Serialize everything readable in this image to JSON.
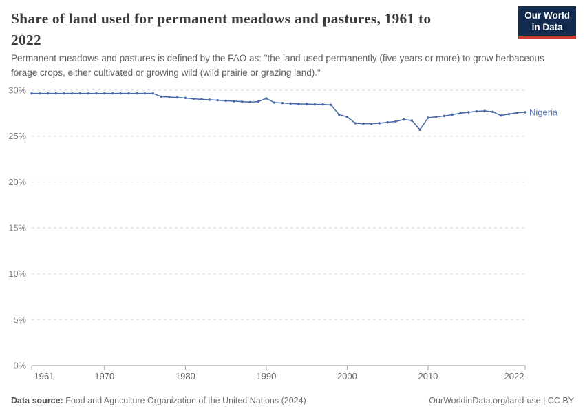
{
  "header": {
    "title": "Share of land used for permanent meadows and pastures, 1961 to 2022",
    "title_lines": [
      "Share of land used for permanent meadows and pastures, 1961 to",
      "2022"
    ],
    "subtitle": "Permanent meadows and pastures is defined by the FAO as: \"the land used permanently (five years or more) to grow herbaceous forage crops, either cultivated or growing wild (wild prairie or grazing land).\"",
    "logo": {
      "line1": "Our World",
      "line2": "in Data",
      "bg": "#122b4e",
      "accent": "#cf3b32"
    }
  },
  "chart_data": {
    "type": "line",
    "title": "Share of land used for permanent meadows and pastures, 1961 to 2022",
    "xlabel": "",
    "ylabel": "",
    "xlim": [
      1961,
      2022
    ],
    "ylim": [
      0,
      30
    ],
    "grid": "horizontal-dashed",
    "legend": "inline-end-label",
    "colors": {
      "grid": "#dadada",
      "axis": "#9e9e9e",
      "y_label": "#7b7b7b",
      "x_label": "#636363"
    },
    "x_ticks": [
      1961,
      1970,
      1980,
      1990,
      2000,
      2010,
      2022
    ],
    "y_ticks": [
      {
        "value": 0,
        "label": "0%"
      },
      {
        "value": 5,
        "label": "5%"
      },
      {
        "value": 10,
        "label": "10%"
      },
      {
        "value": 15,
        "label": "15%"
      },
      {
        "value": 20,
        "label": "20%"
      },
      {
        "value": 25,
        "label": "25%"
      },
      {
        "value": 30,
        "label": "30%"
      }
    ],
    "x": [
      1961,
      1962,
      1963,
      1964,
      1965,
      1966,
      1967,
      1968,
      1969,
      1970,
      1971,
      1972,
      1973,
      1974,
      1975,
      1976,
      1977,
      1978,
      1979,
      1980,
      1981,
      1982,
      1983,
      1984,
      1985,
      1986,
      1987,
      1988,
      1989,
      1990,
      1991,
      1992,
      1993,
      1994,
      1995,
      1996,
      1997,
      1998,
      1999,
      2000,
      2001,
      2002,
      2003,
      2004,
      2005,
      2006,
      2007,
      2008,
      2009,
      2010,
      2011,
      2012,
      2013,
      2014,
      2015,
      2016,
      2017,
      2018,
      2019,
      2020,
      2021,
      2022
    ],
    "series": [
      {
        "name": "Nigeria",
        "color": "#4568a7",
        "label_color": "#5878b0",
        "values": [
          29.65,
          29.65,
          29.65,
          29.65,
          29.65,
          29.65,
          29.65,
          29.65,
          29.65,
          29.65,
          29.65,
          29.65,
          29.65,
          29.65,
          29.65,
          29.65,
          29.3,
          29.25,
          29.2,
          29.15,
          29.05,
          29.0,
          28.95,
          28.9,
          28.85,
          28.8,
          28.75,
          28.7,
          28.75,
          29.1,
          28.65,
          28.6,
          28.55,
          28.5,
          28.5,
          28.45,
          28.45,
          28.4,
          27.35,
          27.1,
          26.4,
          26.35,
          26.35,
          26.4,
          26.5,
          26.6,
          26.8,
          26.7,
          25.7,
          27.0,
          27.1,
          27.2,
          27.35,
          27.5,
          27.6,
          27.7,
          27.75,
          27.65,
          27.25,
          27.4,
          27.55,
          27.6
        ]
      }
    ]
  },
  "footer": {
    "source_label": "Data source:",
    "source_text": " Food and Agriculture Organization of the United Nations (2024)",
    "credit": "OurWorldinData.org/land-use | CC BY"
  }
}
